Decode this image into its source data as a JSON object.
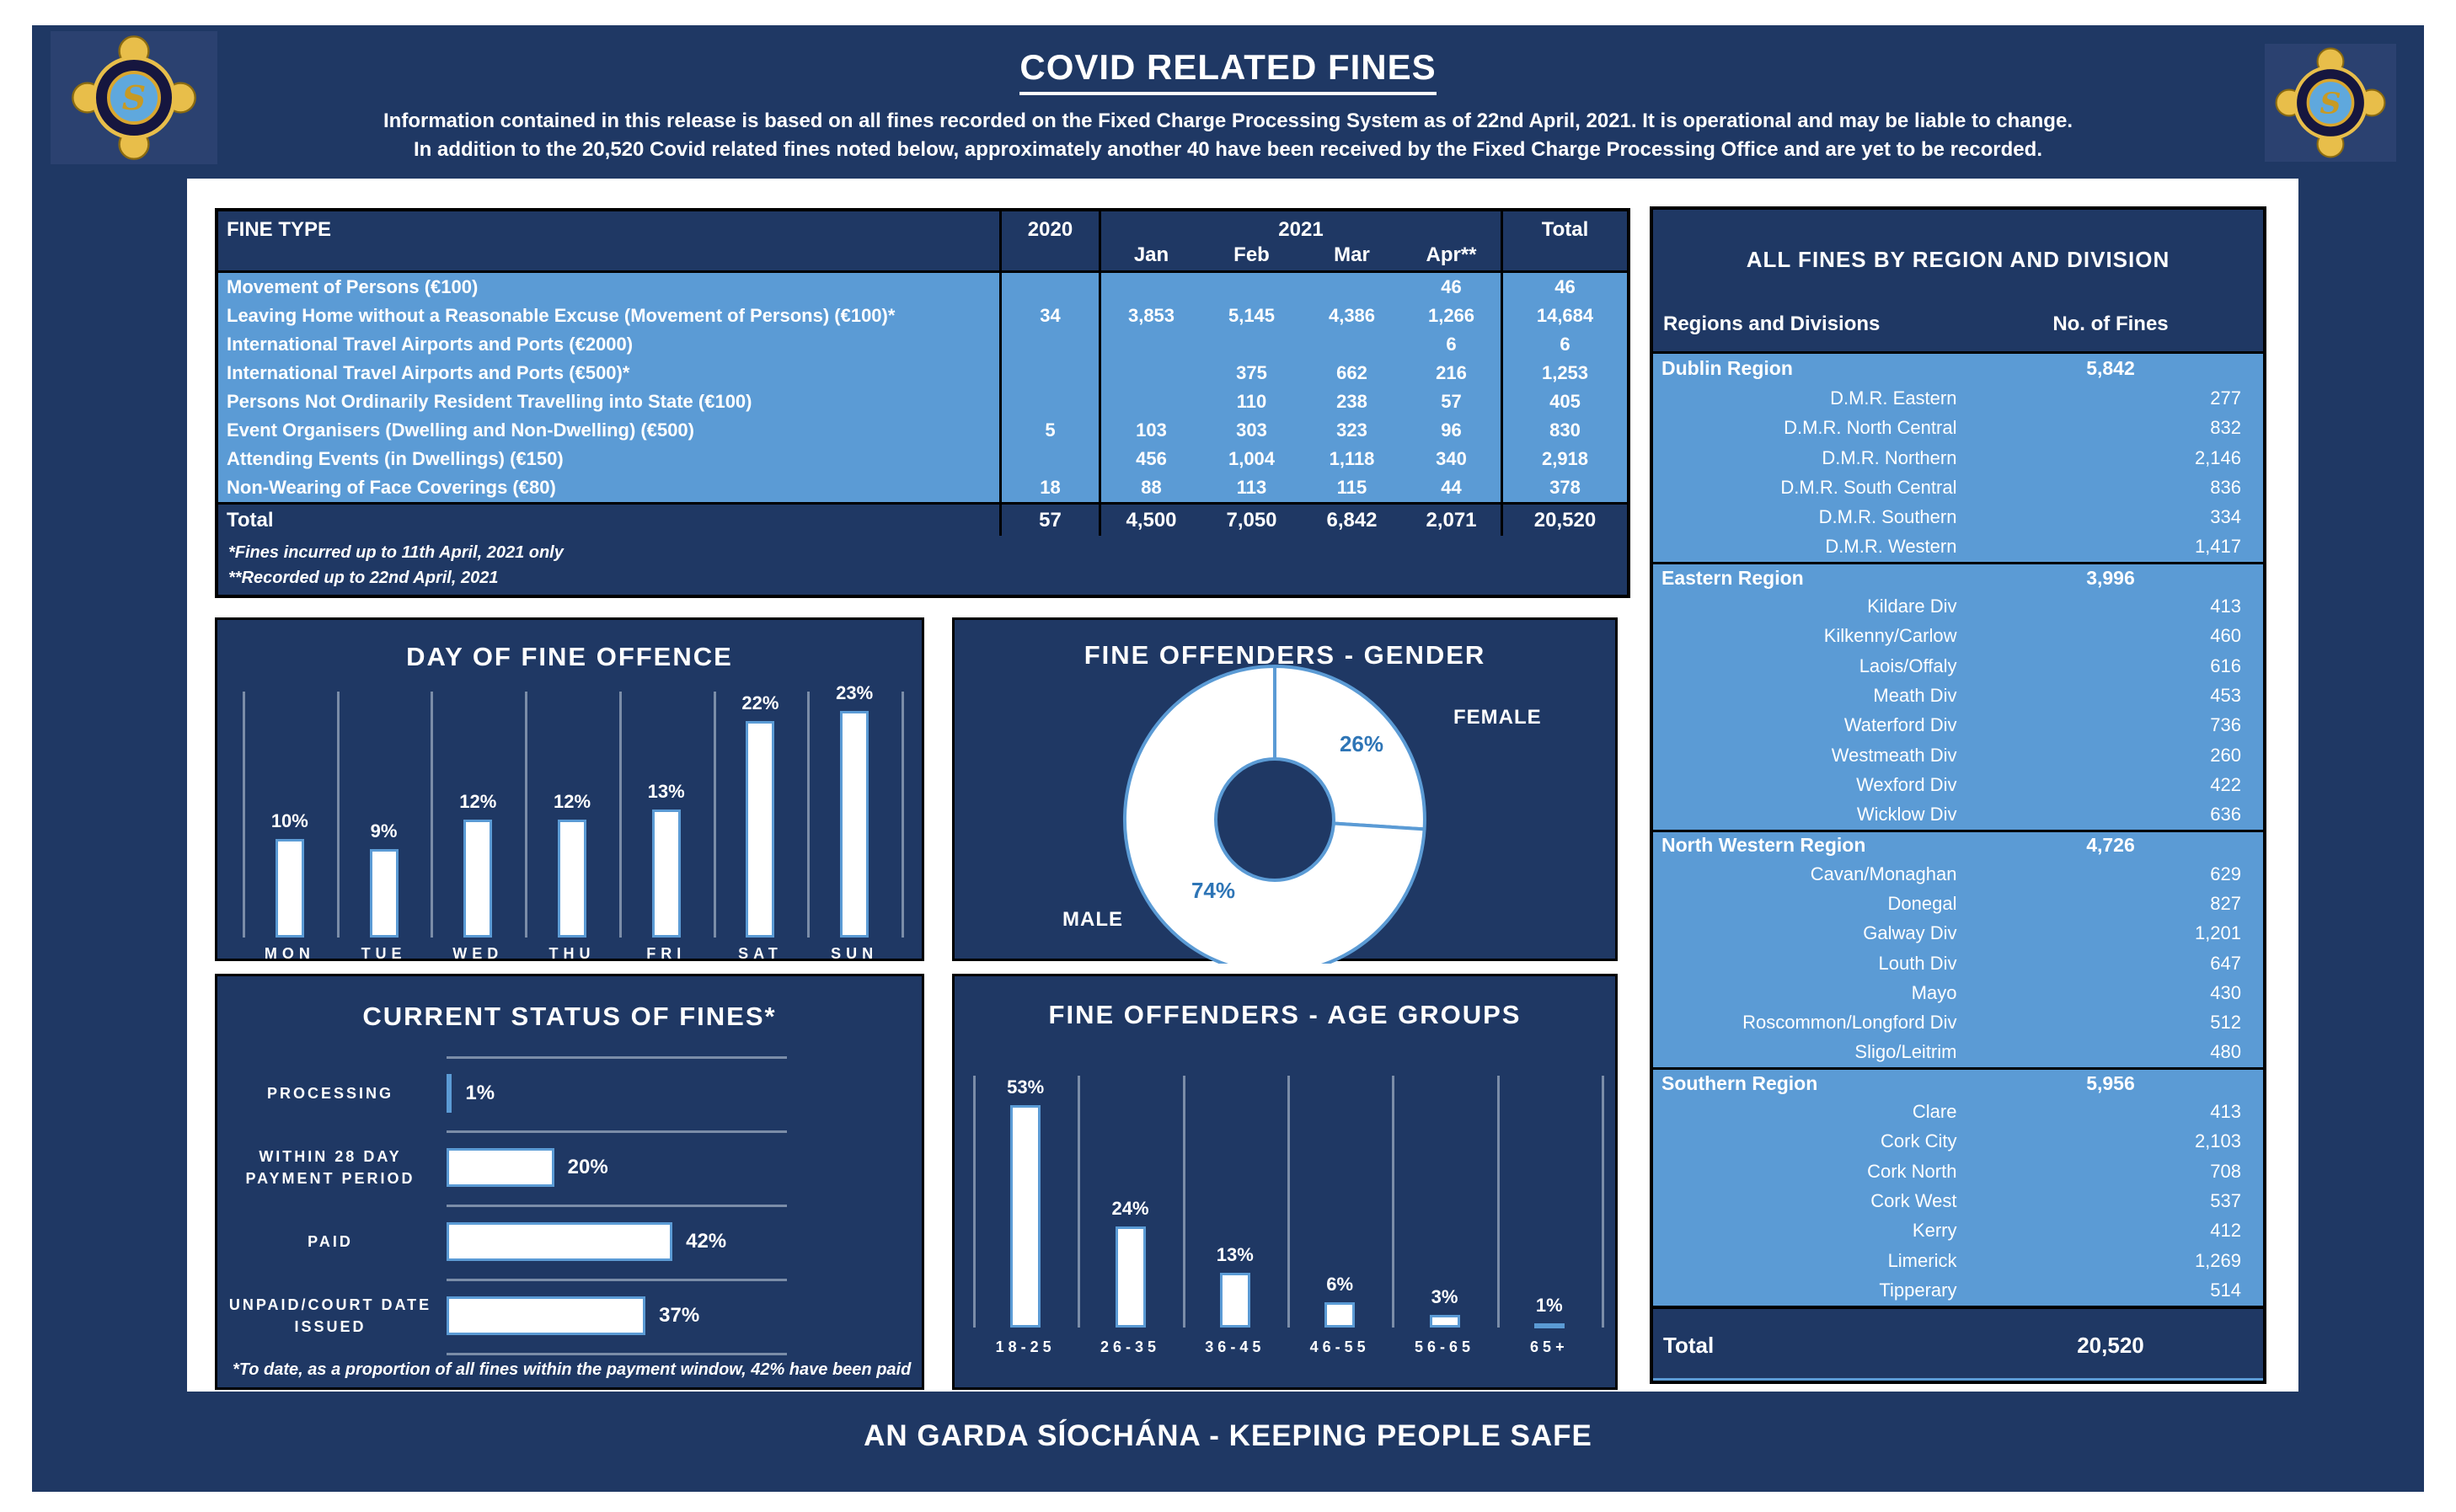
{
  "header": {
    "title": "COVID RELATED FINES",
    "line1": "Information contained in this release is based on all fines recorded on the Fixed Charge Processing System as of 22nd April, 2021.  It is operational and may be liable to change.",
    "line2": "In addition to the 20,520 Covid related fines noted below, approximately another 40 have been received by the Fixed Charge Processing Office and are yet to be recorded."
  },
  "footer": {
    "text": "AN GARDA SÍOCHÁNA - KEEPING PEOPLE SAFE"
  },
  "colors": {
    "navy": "#1F3864",
    "light_blue": "#5B9BD5",
    "label_blue": "#2E75B6",
    "grid_gray": "#7B8DA8",
    "badge_gold": "#D9A62E",
    "white": "#FFFFFF"
  },
  "fine_table": {
    "col_headers": {
      "fine_type": "FINE TYPE",
      "y2020": "2020",
      "y2021": "2021",
      "months": [
        "Jan",
        "Feb",
        "Mar",
        "Apr**"
      ],
      "total": "Total"
    },
    "rows": [
      {
        "type": "Movement of Persons (€100)",
        "y2020": "",
        "jan": "",
        "feb": "",
        "mar": "",
        "apr": "46",
        "total": "46"
      },
      {
        "type": "Leaving Home without a Reasonable Excuse (Movement of Persons) (€100)*",
        "y2020": "34",
        "jan": "3,853",
        "feb": "5,145",
        "mar": "4,386",
        "apr": "1,266",
        "total": "14,684"
      },
      {
        "type": "International Travel Airports and Ports (€2000)",
        "y2020": "",
        "jan": "",
        "feb": "",
        "mar": "",
        "apr": "6",
        "total": "6"
      },
      {
        "type": "International Travel Airports and Ports (€500)*",
        "y2020": "",
        "jan": "",
        "feb": "375",
        "mar": "662",
        "apr": "216",
        "total": "1,253"
      },
      {
        "type": "Persons Not Ordinarily Resident Travelling into State (€100)",
        "y2020": "",
        "jan": "",
        "feb": "110",
        "mar": "238",
        "apr": "57",
        "total": "405"
      },
      {
        "type": "Event Organisers (Dwelling and Non-Dwelling) (€500)",
        "y2020": "5",
        "jan": "103",
        "feb": "303",
        "mar": "323",
        "apr": "96",
        "total": "830"
      },
      {
        "type": "Attending Events (in Dwellings) (€150)",
        "y2020": "",
        "jan": "456",
        "feb": "1,004",
        "mar": "1,118",
        "apr": "340",
        "total": "2,918"
      },
      {
        "type": "Non-Wearing of Face Coverings (€80)",
        "y2020": "18",
        "jan": "88",
        "feb": "113",
        "mar": "115",
        "apr": "44",
        "total": "378"
      }
    ],
    "total_row": {
      "label": "Total",
      "y2020": "57",
      "jan": "4,500",
      "feb": "7,050",
      "mar": "6,842",
      "apr": "2,071",
      "total": "20,520"
    },
    "footnotes": [
      "*Fines incurred up to 11th April, 2021 only",
      "**Recorded up to 22nd April, 2021"
    ]
  },
  "chart_data": [
    {
      "type": "bar",
      "title": "DAY OF FINE OFFENCE",
      "categories": [
        "MON",
        "TUE",
        "WED",
        "THU",
        "FRI",
        "SAT",
        "SUN"
      ],
      "values": [
        10,
        9,
        12,
        12,
        13,
        22,
        23
      ],
      "unit": "%",
      "ylim": [
        0,
        25
      ],
      "grid": true,
      "legend": false
    },
    {
      "type": "pie",
      "title": "FINE OFFENDERS - GENDER",
      "categories": [
        "FEMALE",
        "MALE"
      ],
      "values": [
        26,
        74
      ],
      "unit": "%",
      "donut": true,
      "start_angle_deg": 0,
      "direction": "clockwise"
    },
    {
      "type": "bar",
      "orientation": "horizontal",
      "title": "CURRENT STATUS OF FINES*",
      "categories": [
        "PROCESSING",
        "WITHIN 28 DAY PAYMENT PERIOD",
        "PAID",
        "UNPAID/COURT DATE ISSUED"
      ],
      "categories_lines": [
        [
          "PROCESSING"
        ],
        [
          "WITHIN 28 DAY",
          "PAYMENT PERIOD"
        ],
        [
          "PAID"
        ],
        [
          "UNPAID/COURT DATE",
          "ISSUED"
        ]
      ],
      "values": [
        1,
        20,
        42,
        37
      ],
      "unit": "%",
      "xlim": [
        0,
        50
      ],
      "footnote": "*To date, as a proportion of all fines within the payment window, 42% have been paid"
    },
    {
      "type": "bar",
      "title": "FINE OFFENDERS - AGE GROUPS",
      "categories": [
        "18-25",
        "26-35",
        "36-45",
        "46-55",
        "56-65",
        "65+"
      ],
      "values": [
        53,
        24,
        13,
        6,
        3,
        1
      ],
      "unit": "%",
      "ylim": [
        0,
        60
      ],
      "grid": true,
      "legend": false
    }
  ],
  "region_table": {
    "title": "ALL FINES BY REGION AND DIVISION",
    "col1": "Regions and Divisions",
    "col2": "No. of Fines",
    "regions": [
      {
        "name": "Dublin Region",
        "total": "5,842",
        "divisions": [
          [
            "D.M.R. Eastern",
            "277"
          ],
          [
            "D.M.R. North Central",
            "832"
          ],
          [
            "D.M.R. Northern",
            "2,146"
          ],
          [
            "D.M.R. South Central",
            "836"
          ],
          [
            "D.M.R. Southern",
            "334"
          ],
          [
            "D.M.R. Western",
            "1,417"
          ]
        ]
      },
      {
        "name": "Eastern Region",
        "total": "3,996",
        "divisions": [
          [
            "Kildare Div",
            "413"
          ],
          [
            "Kilkenny/Carlow",
            "460"
          ],
          [
            "Laois/Offaly",
            "616"
          ],
          [
            "Meath Div",
            "453"
          ],
          [
            "Waterford Div",
            "736"
          ],
          [
            "Westmeath Div",
            "260"
          ],
          [
            "Wexford Div",
            "422"
          ],
          [
            "Wicklow Div",
            "636"
          ]
        ]
      },
      {
        "name": "North Western Region",
        "total": "4,726",
        "divisions": [
          [
            "Cavan/Monaghan",
            "629"
          ],
          [
            "Donegal",
            "827"
          ],
          [
            "Galway Div",
            "1,201"
          ],
          [
            "Louth Div",
            "647"
          ],
          [
            "Mayo",
            "430"
          ],
          [
            "Roscommon/Longford Div",
            "512"
          ],
          [
            "Sligo/Leitrim",
            "480"
          ]
        ]
      },
      {
        "name": "Southern Region",
        "total": "5,956",
        "divisions": [
          [
            "Clare",
            "413"
          ],
          [
            "Cork City",
            "2,103"
          ],
          [
            "Cork North",
            "708"
          ],
          [
            "Cork West",
            "537"
          ],
          [
            "Kerry",
            "412"
          ],
          [
            "Limerick",
            "1,269"
          ],
          [
            "Tipperary",
            "514"
          ]
        ]
      }
    ],
    "total_label": "Total",
    "total_value": "20,520"
  }
}
